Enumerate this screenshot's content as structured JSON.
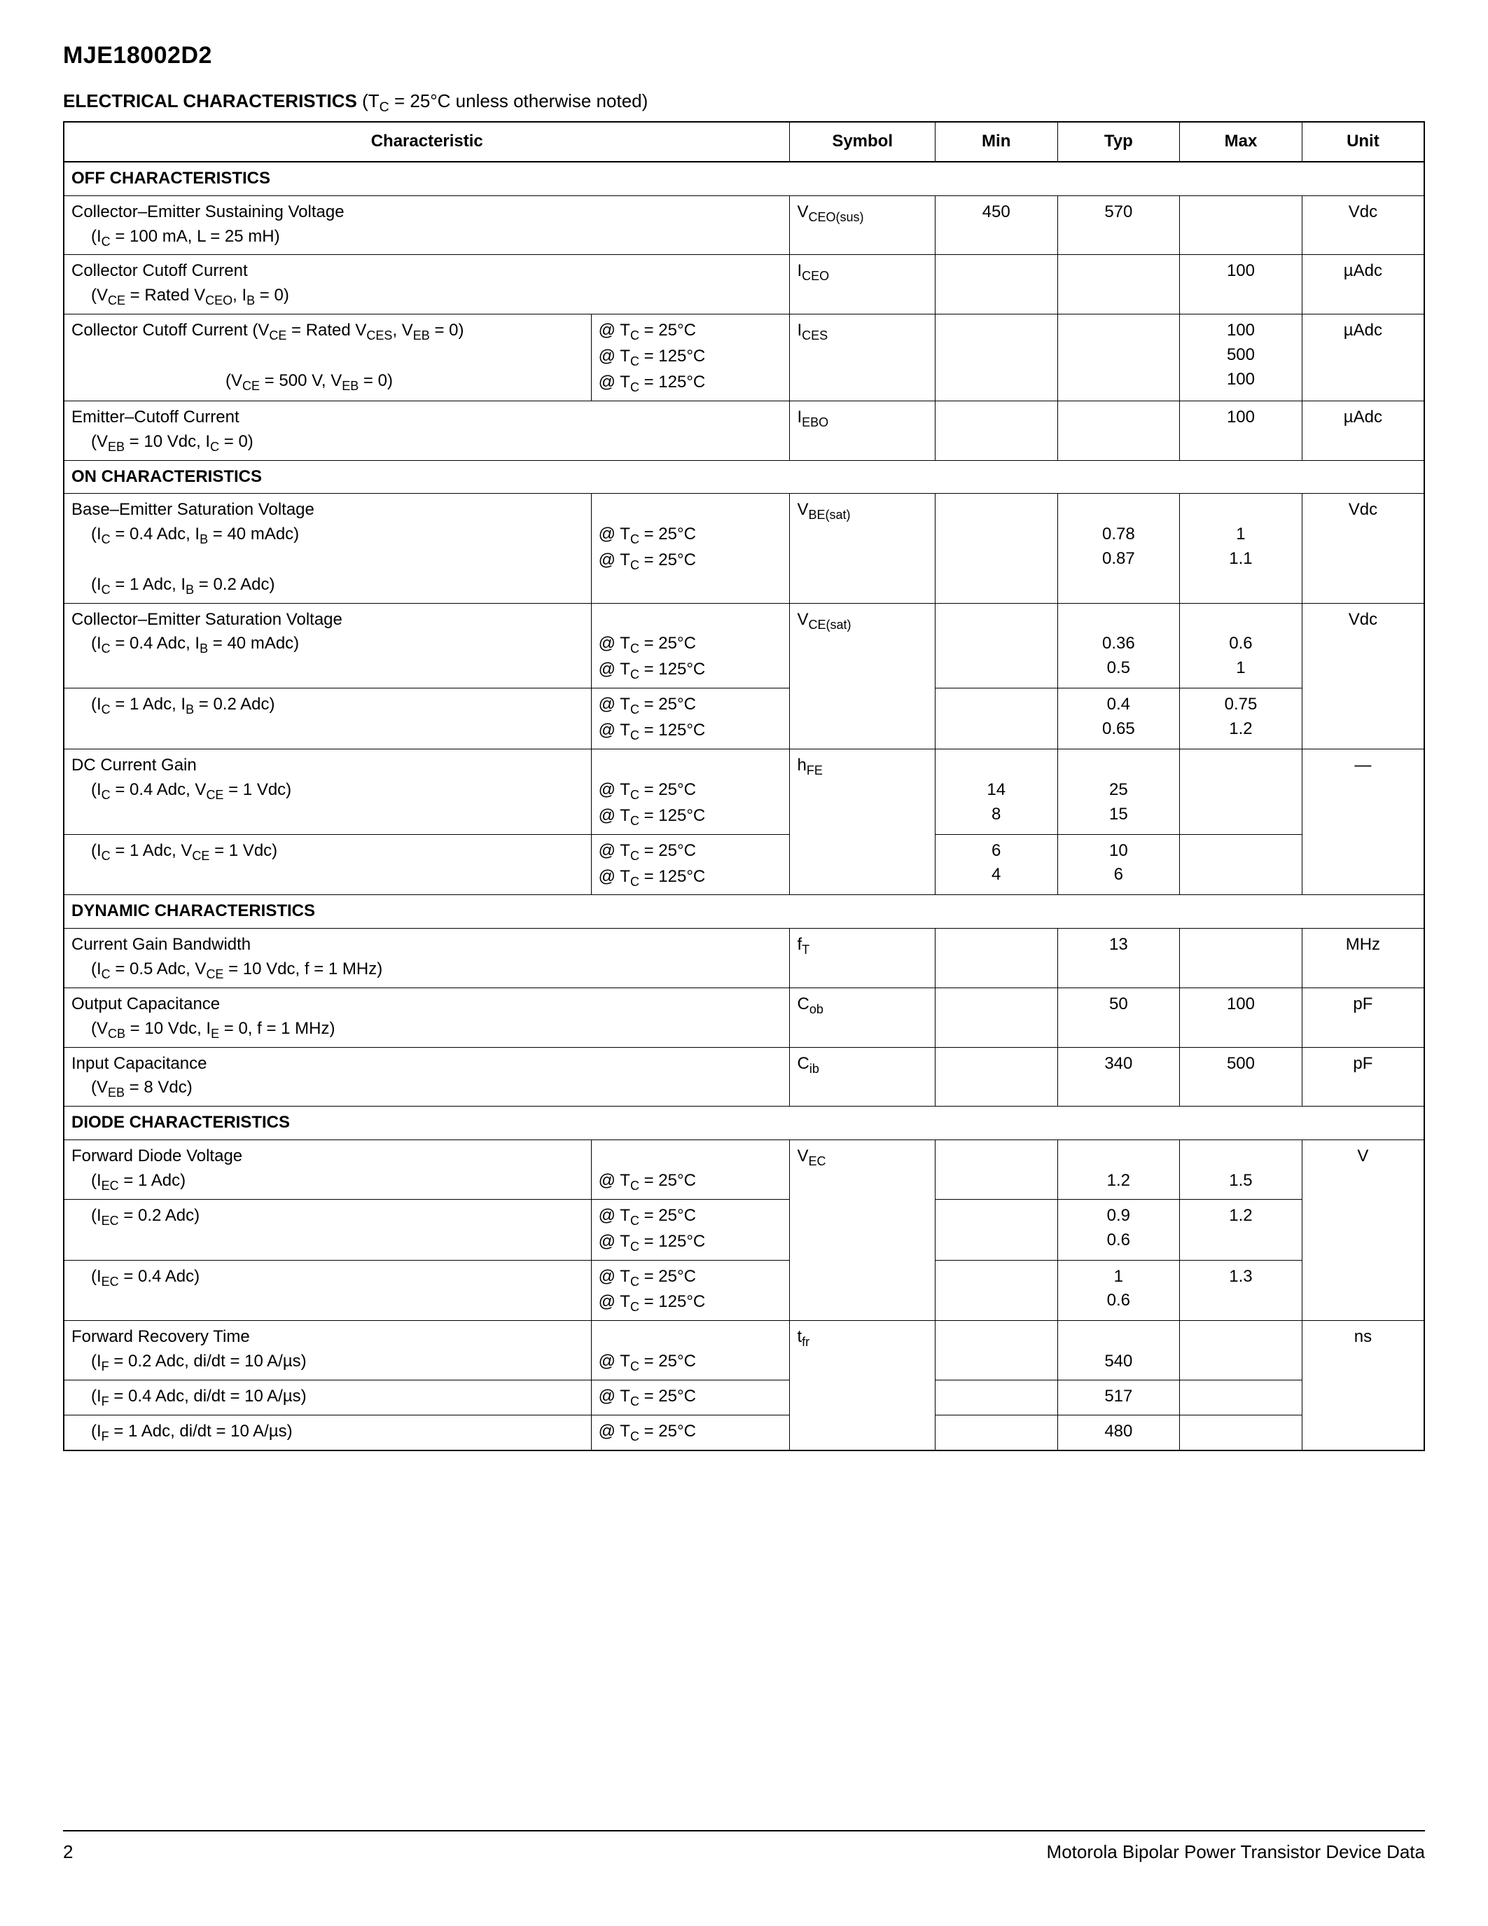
{
  "partNumber": "MJE18002D2",
  "title": "ELECTRICAL CHARACTERISTICS",
  "titleNote": "(T_C = 25°C unless otherwise noted)",
  "headers": [
    "Characteristic",
    "Symbol",
    "Min",
    "Typ",
    "Max",
    "Unit"
  ],
  "footer": {
    "page": "2",
    "text": "Motorola Bipolar Power Transistor Device Data"
  },
  "sections": [
    {
      "name": "OFF CHARACTERISTICS",
      "rows": [
        {
          "char": "Collector–Emitter Sustaining Voltage",
          "sub": [
            "(I_C = 100 mA, L = 25 mH)"
          ],
          "sym": "V_CEO(sus)",
          "min": "450",
          "typ": "570",
          "max": "",
          "unit": "Vdc"
        },
        {
          "char": "Collector Cutoff Current",
          "sub": [
            "(V_CE = Rated V_CEO, I_B = 0)"
          ],
          "sym": "I_CEO",
          "min": "",
          "typ": "",
          "max": "100",
          "unit": "µAdc"
        },
        {
          "char": "Collector Cutoff Current  (V_CE = Rated V_CES, V_EB = 0)",
          "sub": [
            "",
            "        (V_CE = 500 V, V_EB = 0)"
          ],
          "cond": [
            "@ T_C = 25°C",
            "@ T_C = 125°C",
            "@ T_C = 125°C"
          ],
          "sym": "I_CES",
          "min": "",
          "typ": "",
          "max": "100\n500\n100",
          "unit": "µAdc"
        },
        {
          "char": "Emitter–Cutoff Current",
          "sub": [
            "(V_EB = 10 Vdc, I_C = 0)"
          ],
          "sym": "I_EBO",
          "min": "",
          "typ": "",
          "max": "100",
          "unit": "µAdc"
        }
      ]
    },
    {
      "name": "ON CHARACTERISTICS",
      "rows": [
        {
          "char": "Base–Emitter Saturation Voltage",
          "sub": [
            "(I_C = 0.4 Adc, I_B = 40 mAdc)",
            "(I_C = 1 Adc, I_B = 0.2 Adc)"
          ],
          "cond": [
            "",
            "@ T_C = 25°C",
            "@ T_C = 25°C"
          ],
          "sym": "V_BE(sat)",
          "min": "",
          "typ": "\n0.78\n0.87",
          "max": "\n1\n1.1",
          "unit": "Vdc"
        },
        {
          "char": "Collector–Emitter Saturation Voltage",
          "groups": [
            {
              "sub": "(I_C = 0.4 Adc, I_B = 40 mAdc)",
              "cond": [
                "@ T_C = 25°C",
                "@ T_C = 125°C"
              ],
              "typ": "0.36\n0.5",
              "max": "0.6\n1"
            },
            {
              "sub": "(I_C = 1 Adc, I_B = 0.2 Adc)",
              "cond": [
                "@ T_C = 25°C",
                "@ T_C = 125°C"
              ],
              "typ": "0.4\n0.65",
              "max": "0.75\n1.2"
            }
          ],
          "sym": "V_CE(sat)",
          "unit": "Vdc"
        },
        {
          "char": "DC Current Gain",
          "groups": [
            {
              "sub": "(I_C = 0.4 Adc, V_CE = 1 Vdc)",
              "cond": [
                "@ T_C = 25°C",
                "@ T_C = 125°C"
              ],
              "min": "14\n8",
              "typ": "25\n15"
            },
            {
              "sub": "(I_C = 1 Adc, V_CE = 1 Vdc)",
              "cond": [
                "@ T_C = 25°C",
                "@ T_C = 125°C"
              ],
              "min": "6\n4",
              "typ": "10\n6"
            }
          ],
          "sym": "h_FE",
          "unit": "—"
        }
      ]
    },
    {
      "name": "DYNAMIC CHARACTERISTICS",
      "rows": [
        {
          "char": "Current Gain Bandwidth",
          "sub": [
            "(I_C = 0.5 Adc, V_CE = 10 Vdc, f = 1 MHz)"
          ],
          "sym": "f_T",
          "min": "",
          "typ": "13",
          "max": "",
          "unit": "MHz"
        },
        {
          "char": "Output Capacitance",
          "sub": [
            "(V_CB = 10 Vdc, I_E = 0, f = 1 MHz)"
          ],
          "sym": "C_ob",
          "min": "",
          "typ": "50",
          "max": "100",
          "unit": "pF"
        },
        {
          "char": "Input Capacitance",
          "sub": [
            "(V_EB = 8 Vdc)"
          ],
          "sym": "C_ib",
          "min": "",
          "typ": "340",
          "max": "500",
          "unit": "pF"
        }
      ]
    },
    {
      "name": "DIODE CHARACTERISTICS",
      "rows": [
        {
          "char": "Forward Diode Voltage",
          "groups": [
            {
              "sub": "(I_EC = 1 Adc)",
              "cond": [
                "@ T_C = 25°C"
              ],
              "typ": "1.2",
              "max": "1.5"
            },
            {
              "sub": "(I_EC = 0.2 Adc)",
              "cond": [
                "@ T_C = 25°C",
                "@ T_C = 125°C"
              ],
              "typ": "0.9\n0.6",
              "max": "1.2"
            },
            {
              "sub": "(I_EC = 0.4 Adc)",
              "cond": [
                "@ T_C = 25°C",
                "@ T_C = 125°C"
              ],
              "typ": "1\n0.6",
              "max": "1.3"
            }
          ],
          "sym": "V_EC",
          "unit": "V"
        },
        {
          "char": "Forward Recovery Time",
          "groups": [
            {
              "sub": "(I_F = 0.2 Adc, di/dt = 10 A/µs)",
              "cond": [
                "@ T_C = 25°C"
              ],
              "typ": "540"
            },
            {
              "sub": "(I_F = 0.4 Adc, di/dt = 10 A/µs)",
              "cond": [
                "@ T_C = 25°C"
              ],
              "typ": "517"
            },
            {
              "sub": "(I_F = 1 Adc, di/dt = 10 A/µs)",
              "cond": [
                "@ T_C = 25°C"
              ],
              "typ": "480"
            }
          ],
          "sym": "t_fr",
          "unit": "ns"
        }
      ]
    }
  ]
}
